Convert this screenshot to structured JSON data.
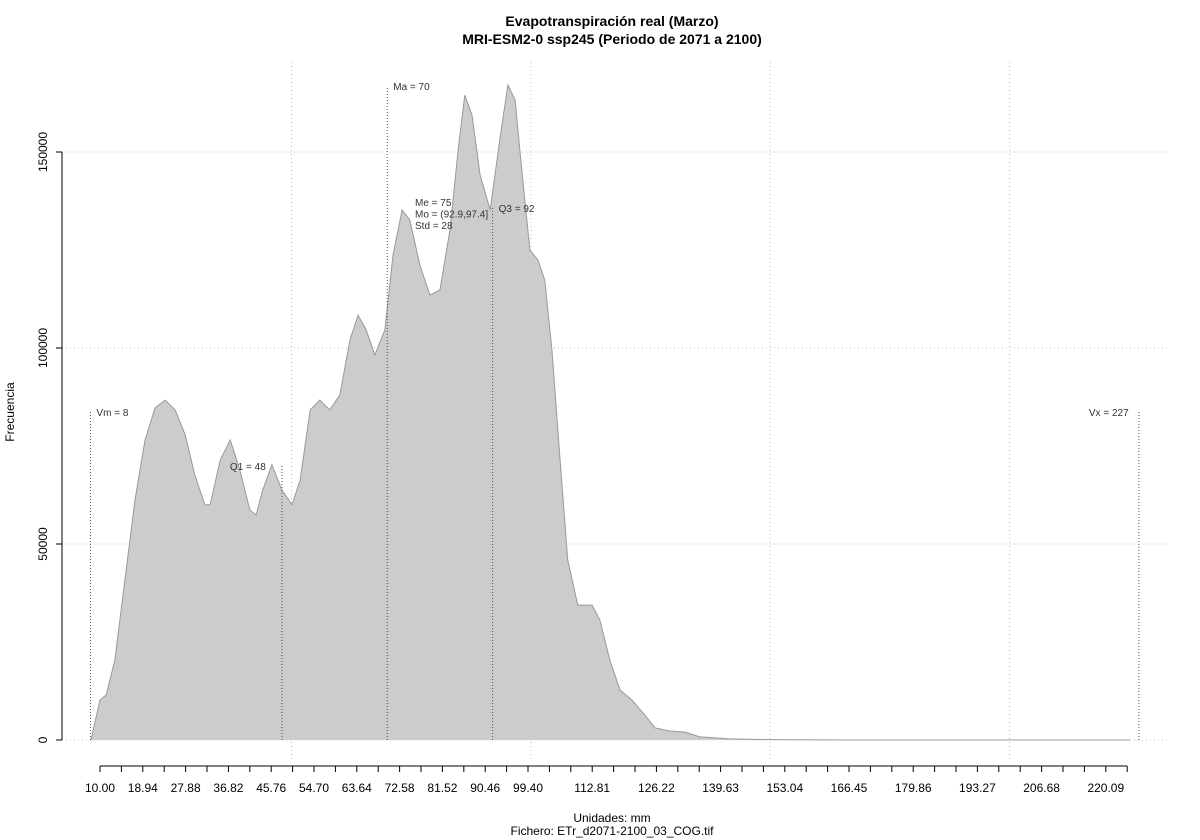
{
  "chart_data": {
    "type": "area",
    "title": "Evapotranspiración real (Marzo)",
    "subtitle": "MRI-ESM2-0 ssp245 (Periodo de 2071 a 2100)",
    "x_label": "Unidades: mm",
    "caption": "Fichero: ETr_d2071-2100_03_COG.tif",
    "y_label": "Frecuencia",
    "color": "#cccccc",
    "line_color": "#999999",
    "x": [
      8.1,
      10,
      11.3,
      13.1,
      15.2,
      17.3,
      19.4,
      21.5,
      23.6,
      25.7,
      27.8,
      29.8,
      31.9,
      33.0,
      35.1,
      37.2,
      39.2,
      41.3,
      42.6,
      44.0,
      45.9,
      48.0,
      50.1,
      51.8,
      53.9,
      55.9,
      58.0,
      60.1,
      62.2,
      63.9,
      65.6,
      67.4,
      69.5,
      71.2,
      73.1,
      74.7,
      76.8,
      78.9,
      81.0,
      83.1,
      84.8,
      86.2,
      87.7,
      89.4,
      91.5,
      93.5,
      95.2,
      96.7,
      98.1,
      99.8,
      101.5,
      102.9,
      104.4,
      106.1,
      107.7,
      109.8,
      112.8,
      114.4,
      116.5,
      118.6,
      121.1,
      123.8,
      125.9,
      129.0,
      132.2,
      135.3,
      141.6,
      149.9,
      166.6,
      225.1
    ],
    "values": [
      0,
      10200,
      11500,
      20400,
      40800,
      61200,
      76500,
      84700,
      86700,
      84200,
      77800,
      67600,
      60000,
      60000,
      71400,
      76500,
      68900,
      58700,
      57400,
      63800,
      70200,
      63800,
      60000,
      66300,
      84200,
      86700,
      84200,
      88000,
      102000,
      108400,
      104600,
      98200,
      104600,
      123700,
      135200,
      132700,
      121200,
      113500,
      114800,
      130100,
      150500,
      164500,
      159400,
      144100,
      135200,
      153100,
      167100,
      163300,
      145400,
      125000,
      122400,
      117300,
      99500,
      71400,
      45900,
      34400,
      34400,
      30600,
      20400,
      12800,
      10200,
      6400,
      3100,
      2300,
      2000,
      800,
      300,
      100,
      0,
      0
    ],
    "xlim": [
      2.06,
      233.5
    ],
    "ylim": [
      -6633,
      172960
    ],
    "xticks": [
      {
        "value": 10,
        "label": "10.00"
      },
      18.94,
      27.88,
      36.82,
      45.76,
      {
        "value": 54.7,
        "label": "54.70"
      },
      63.64,
      72.58,
      81.52,
      90.46,
      {
        "value": 99.4,
        "label": "99.40"
      },
      112.81,
      126.22,
      139.63,
      153.04,
      166.45,
      179.86,
      193.27,
      206.68,
      220.09
    ],
    "xminorticks": [
      14.47,
      23.41,
      32.35,
      41.29,
      50.23,
      59.17,
      68.11,
      77.05,
      85.99,
      94.93,
      103.87,
      108.34,
      117.28,
      121.75,
      130.69,
      135.16,
      144.1,
      148.57,
      157.51,
      161.98,
      170.92,
      175.39,
      184.33,
      188.8,
      197.74,
      202.21,
      211.15,
      215.62,
      224.56
    ],
    "yticks": [
      0,
      50000,
      100000,
      150000
    ],
    "xgrid": [
      50,
      100,
      150,
      200
    ],
    "grid": true,
    "markers": [
      {
        "text": "Vm = 8",
        "x": 8
      },
      {
        "text": "Q1 = 48",
        "x": 48
      },
      {
        "text": "Ma = 70",
        "x": 70
      },
      {
        "text": "Q3 = 92",
        "x": 92
      },
      {
        "text": "Vx = 227",
        "x": 227
      }
    ],
    "stats": [
      "Me = 75",
      "Mo = (92.9,97.4]",
      "Std = 28"
    ]
  }
}
